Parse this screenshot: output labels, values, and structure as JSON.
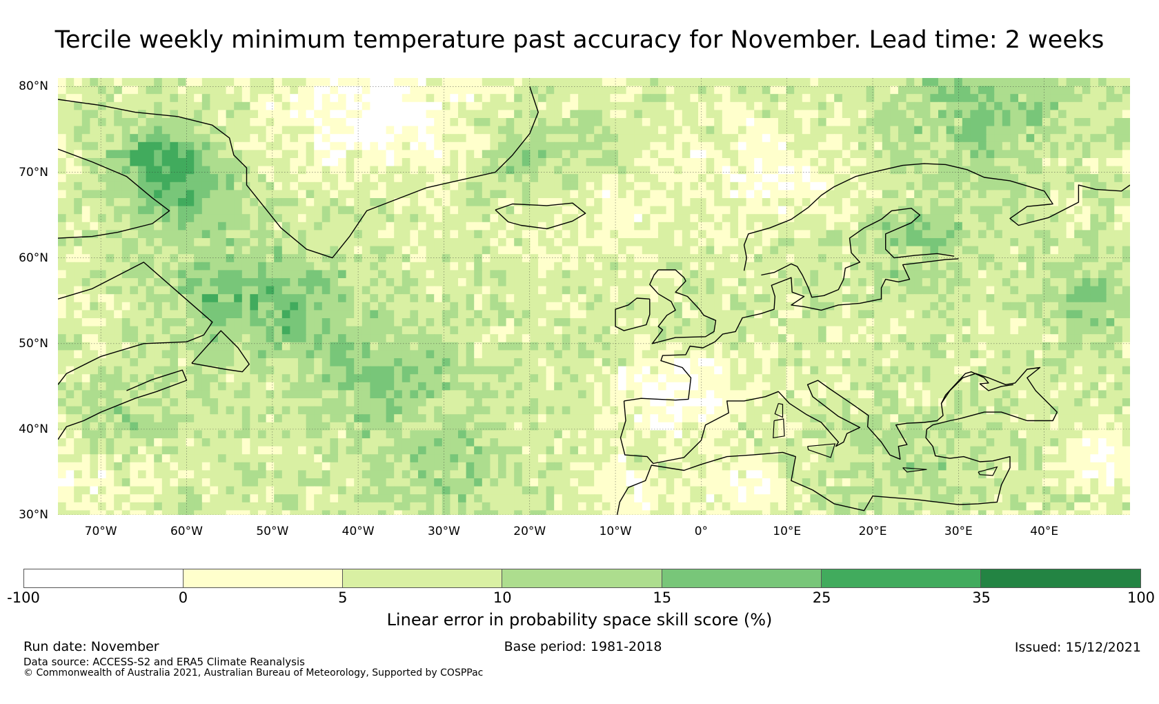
{
  "title": "Tercile weekly minimum temperature past accuracy for November. Lead time: 2 weeks",
  "map": {
    "extent": {
      "lon_min": -75,
      "lon_max": 50,
      "lat_min": 30,
      "lat_max": 81
    },
    "lat_ticks": [
      {
        "value": 80,
        "label": "80°N"
      },
      {
        "value": 70,
        "label": "70°N"
      },
      {
        "value": 60,
        "label": "60°N"
      },
      {
        "value": 50,
        "label": "50°N"
      },
      {
        "value": 40,
        "label": "40°N"
      },
      {
        "value": 30,
        "label": "30°N"
      }
    ],
    "lon_ticks": [
      {
        "value": -70,
        "label": "70°W"
      },
      {
        "value": -60,
        "label": "60°W"
      },
      {
        "value": -50,
        "label": "50°W"
      },
      {
        "value": -40,
        "label": "40°W"
      },
      {
        "value": -30,
        "label": "30°W"
      },
      {
        "value": -20,
        "label": "20°W"
      },
      {
        "value": -10,
        "label": "10°W"
      },
      {
        "value": 0,
        "label": "0°"
      },
      {
        "value": 10,
        "label": "10°E"
      },
      {
        "value": 20,
        "label": "20°E"
      },
      {
        "value": 30,
        "label": "30°E"
      },
      {
        "value": 40,
        "label": "40°E"
      }
    ],
    "gridline_color": "#333333",
    "coastline_color": "#000000"
  },
  "colorbar": {
    "label": "Linear error in probability space skill score (%)",
    "ticks": [
      "-100",
      "0",
      "5",
      "10",
      "15",
      "25",
      "35",
      "100"
    ],
    "segments": [
      {
        "from": -100,
        "to": 0,
        "color": "#ffffff"
      },
      {
        "from": 0,
        "to": 5,
        "color": "#ffffcc"
      },
      {
        "from": 5,
        "to": 10,
        "color": "#d9f0a3"
      },
      {
        "from": 10,
        "to": 15,
        "color": "#addd8e"
      },
      {
        "from": 15,
        "to": 25,
        "color": "#78c679"
      },
      {
        "from": 25,
        "to": 35,
        "color": "#41ab5d"
      },
      {
        "from": 35,
        "to": 100,
        "color": "#238443"
      }
    ]
  },
  "footer": {
    "run_date": "Run date: November",
    "base_period": "Base period: 1981-2018",
    "issued": "Issued: 15/12/2021",
    "data_source": "Data source: ACCESS-S2 and ERA5 Climate Reanalysis",
    "copyright": "© Commonwealth of Australia 2021, Australian Bureau of Meteorology, Supported by COSPPac"
  }
}
